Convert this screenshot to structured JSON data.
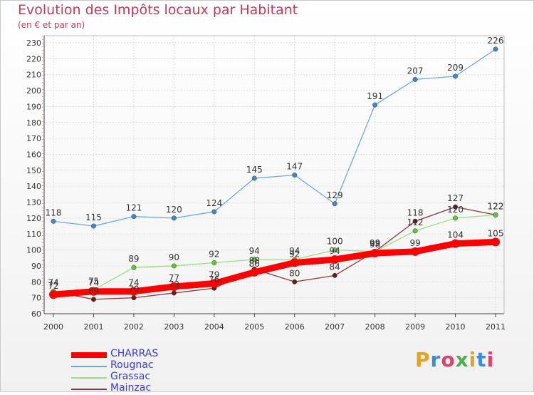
{
  "title": "Evolution des Impôts locaux par Habitant",
  "subtitle": "(en € et par an)",
  "logo": {
    "text": "Proxiti",
    "colors": [
      "#e8a020",
      "#3c8de0",
      "#e0406a",
      "#4caf50"
    ]
  },
  "chart_data": {
    "type": "line",
    "title": "Evolution des Impôts locaux par Habitant",
    "subtitle": "(en € et par an)",
    "x": [
      "2000",
      "2001",
      "2002",
      "2003",
      "2004",
      "2005",
      "2006",
      "2007",
      "2008",
      "2009",
      "2010",
      "2011"
    ],
    "ylim": [
      60,
      230
    ],
    "yticks": [
      60,
      70,
      80,
      90,
      100,
      110,
      120,
      130,
      140,
      150,
      160,
      170,
      180,
      190,
      200,
      210,
      220,
      230
    ],
    "grid": true,
    "legend_position": "bottom-left",
    "series": [
      {
        "name": "CHARRAS",
        "color": "#ff0000",
        "values": [
          72,
          74,
          74,
          77,
          79,
          86,
          92,
          94,
          98,
          99,
          104,
          105
        ]
      },
      {
        "name": "Rougnac",
        "color": "#6aaad8",
        "marker": "#3c8ad0",
        "values": [
          118,
          115,
          121,
          120,
          124,
          145,
          147,
          129,
          191,
          207,
          209,
          226
        ]
      },
      {
        "name": "Grassac",
        "color": "#9ae07a",
        "marker": "#5ec83a",
        "values": [
          74,
          75,
          89,
          90,
          92,
          94,
          94,
          100,
          99,
          112,
          120,
          122
        ]
      },
      {
        "name": "Mainzac",
        "color": "#8a3a3a",
        "marker": "#6a1a1a",
        "values": [
          74,
          69,
          70,
          73,
          76,
          88,
          80,
          84,
          99,
          118,
          127,
          122
        ]
      }
    ]
  }
}
